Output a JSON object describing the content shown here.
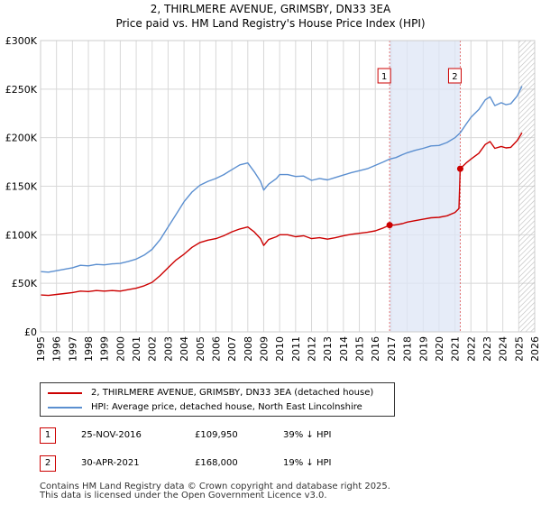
{
  "chart_data": {
    "type": "line",
    "title": "2, THIRLMERE AVENUE, GRIMSBY, DN33 3EA",
    "subtitle": "Price paid vs. HM Land Registry's House Price Index (HPI)",
    "xlim": [
      1995,
      2026
    ],
    "ylim": [
      0,
      300000
    ],
    "y_ticks": [
      0,
      50000,
      100000,
      150000,
      200000,
      250000,
      300000
    ],
    "y_tick_labels": [
      "£0",
      "£50K",
      "£100K",
      "£150K",
      "£200K",
      "£250K",
      "£300K"
    ],
    "x_ticks": [
      1995,
      1996,
      1997,
      1998,
      1999,
      2000,
      2001,
      2002,
      2003,
      2004,
      2005,
      2006,
      2007,
      2008,
      2009,
      2010,
      2011,
      2012,
      2013,
      2014,
      2015,
      2016,
      2017,
      2018,
      2019,
      2020,
      2021,
      2022,
      2023,
      2024,
      2025,
      2026
    ],
    "x_tick_labels": [
      "1995",
      "1996",
      "1997",
      "1998",
      "1999",
      "2000",
      "2001",
      "2002",
      "2003",
      "2004",
      "2005",
      "2006",
      "2007",
      "2008",
      "2009",
      "2010",
      "2011",
      "2012",
      "2013",
      "2014",
      "2015",
      "2016",
      "2017",
      "2018",
      "2019",
      "2020",
      "2021",
      "2022",
      "2023",
      "2024",
      "2025",
      "2026"
    ],
    "grid": true,
    "shaded_ranges": [
      [
        2016.9,
        2021.33
      ]
    ],
    "hatched_from": 2025.0,
    "sale_markers": [
      {
        "label": "1",
        "x": 2016.9,
        "y": 109950
      },
      {
        "label": "2",
        "x": 2021.33,
        "y": 168000
      }
    ],
    "series": [
      {
        "name": "2, THIRLMERE AVENUE, GRIMSBY, DN33 3EA (detached house)",
        "color": "#cc0000",
        "points": [
          [
            1995.0,
            38000
          ],
          [
            1995.5,
            37500
          ],
          [
            1996.0,
            38500
          ],
          [
            1996.5,
            39500
          ],
          [
            1997.0,
            40500
          ],
          [
            1997.5,
            42000
          ],
          [
            1998.0,
            41500
          ],
          [
            1998.5,
            42500
          ],
          [
            1999.0,
            42000
          ],
          [
            1999.5,
            42500
          ],
          [
            2000.0,
            42000
          ],
          [
            2000.5,
            43500
          ],
          [
            2001.0,
            45000
          ],
          [
            2001.5,
            47500
          ],
          [
            2002.0,
            51000
          ],
          [
            2002.5,
            58000
          ],
          [
            2003.0,
            66000
          ],
          [
            2003.5,
            74000
          ],
          [
            2004.0,
            80000
          ],
          [
            2004.5,
            87000
          ],
          [
            2005.0,
            92000
          ],
          [
            2005.5,
            94500
          ],
          [
            2006.0,
            96000
          ],
          [
            2006.5,
            99000
          ],
          [
            2007.0,
            103000
          ],
          [
            2007.5,
            106000
          ],
          [
            2008.0,
            108000
          ],
          [
            2008.4,
            103000
          ],
          [
            2008.8,
            96000
          ],
          [
            2009.0,
            89000
          ],
          [
            2009.3,
            95000
          ],
          [
            2009.8,
            98000
          ],
          [
            2010.0,
            100000
          ],
          [
            2010.5,
            100000
          ],
          [
            2011.0,
            98000
          ],
          [
            2011.5,
            99000
          ],
          [
            2012.0,
            96000
          ],
          [
            2012.5,
            97000
          ],
          [
            2013.0,
            95500
          ],
          [
            2013.5,
            97000
          ],
          [
            2014.0,
            99000
          ],
          [
            2014.5,
            100500
          ],
          [
            2015.0,
            101500
          ],
          [
            2015.5,
            102500
          ],
          [
            2016.0,
            104000
          ],
          [
            2016.5,
            107000
          ],
          [
            2016.9,
            109950
          ],
          [
            2017.2,
            110000
          ],
          [
            2017.7,
            111500
          ],
          [
            2018.0,
            113000
          ],
          [
            2018.5,
            114500
          ],
          [
            2019.0,
            116000
          ],
          [
            2019.5,
            117500
          ],
          [
            2020.0,
            118000
          ],
          [
            2020.5,
            119500
          ],
          [
            2021.0,
            123000
          ],
          [
            2021.25,
            127000
          ],
          [
            2021.33,
            168000
          ],
          [
            2021.7,
            174000
          ],
          [
            2022.0,
            178000
          ],
          [
            2022.5,
            184000
          ],
          [
            2022.9,
            193000
          ],
          [
            2023.2,
            196000
          ],
          [
            2023.5,
            189000
          ],
          [
            2023.9,
            191000
          ],
          [
            2024.2,
            189500
          ],
          [
            2024.5,
            190000
          ],
          [
            2024.9,
            197000
          ],
          [
            2025.2,
            205000
          ]
        ]
      },
      {
        "name": "HPI: Average price, detached house, North East Lincolnshire",
        "color": "#5b8fd0",
        "points": [
          [
            1995.0,
            62000
          ],
          [
            1995.5,
            61500
          ],
          [
            1996.0,
            63000
          ],
          [
            1996.5,
            64500
          ],
          [
            1997.0,
            66000
          ],
          [
            1997.5,
            68500
          ],
          [
            1998.0,
            68000
          ],
          [
            1998.5,
            69500
          ],
          [
            1999.0,
            69000
          ],
          [
            1999.5,
            70000
          ],
          [
            2000.0,
            70500
          ],
          [
            2000.5,
            72500
          ],
          [
            2001.0,
            75000
          ],
          [
            2001.5,
            79000
          ],
          [
            2002.0,
            85000
          ],
          [
            2002.5,
            95000
          ],
          [
            2003.0,
            108000
          ],
          [
            2003.5,
            121000
          ],
          [
            2004.0,
            134000
          ],
          [
            2004.5,
            144000
          ],
          [
            2005.0,
            151000
          ],
          [
            2005.5,
            155000
          ],
          [
            2006.0,
            158000
          ],
          [
            2006.5,
            162000
          ],
          [
            2007.0,
            167000
          ],
          [
            2007.5,
            172000
          ],
          [
            2008.0,
            174000
          ],
          [
            2008.4,
            165000
          ],
          [
            2008.8,
            155000
          ],
          [
            2009.0,
            146000
          ],
          [
            2009.3,
            152000
          ],
          [
            2009.8,
            158000
          ],
          [
            2010.0,
            162000
          ],
          [
            2010.5,
            162000
          ],
          [
            2011.0,
            160000
          ],
          [
            2011.5,
            160500
          ],
          [
            2012.0,
            156000
          ],
          [
            2012.5,
            158000
          ],
          [
            2013.0,
            156500
          ],
          [
            2013.5,
            159000
          ],
          [
            2014.0,
            161500
          ],
          [
            2014.5,
            164000
          ],
          [
            2015.0,
            166000
          ],
          [
            2015.5,
            168000
          ],
          [
            2016.0,
            171500
          ],
          [
            2016.5,
            175000
          ],
          [
            2016.9,
            178000
          ],
          [
            2017.3,
            179500
          ],
          [
            2017.7,
            182500
          ],
          [
            2018.0,
            184500
          ],
          [
            2018.5,
            187000
          ],
          [
            2019.0,
            189000
          ],
          [
            2019.5,
            191500
          ],
          [
            2020.0,
            192000
          ],
          [
            2020.5,
            195000
          ],
          [
            2021.0,
            200000
          ],
          [
            2021.33,
            205000
          ],
          [
            2021.7,
            214000
          ],
          [
            2022.0,
            221000
          ],
          [
            2022.5,
            229000
          ],
          [
            2022.9,
            239000
          ],
          [
            2023.2,
            242000
          ],
          [
            2023.5,
            233000
          ],
          [
            2023.9,
            236000
          ],
          [
            2024.2,
            234000
          ],
          [
            2024.5,
            235000
          ],
          [
            2024.9,
            243000
          ],
          [
            2025.2,
            253000
          ]
        ]
      }
    ]
  },
  "legend": {
    "property_label": "2, THIRLMERE AVENUE, GRIMSBY, DN33 3EA (detached house)",
    "hpi_label": "HPI: Average price, detached house, North East Lincolnshire",
    "property_color": "#cc0000",
    "hpi_color": "#5b8fd0"
  },
  "sales": [
    {
      "num": "1",
      "date": "25-NOV-2016",
      "price": "£109,950",
      "hpi": "39% ↓ HPI"
    },
    {
      "num": "2",
      "date": "30-APR-2021",
      "price": "£168,000",
      "hpi": "19% ↓ HPI"
    }
  ],
  "footer": {
    "line1": "Contains HM Land Registry data © Crown copyright and database right 2025.",
    "line2": "This data is licensed under the Open Government Licence v3.0."
  }
}
